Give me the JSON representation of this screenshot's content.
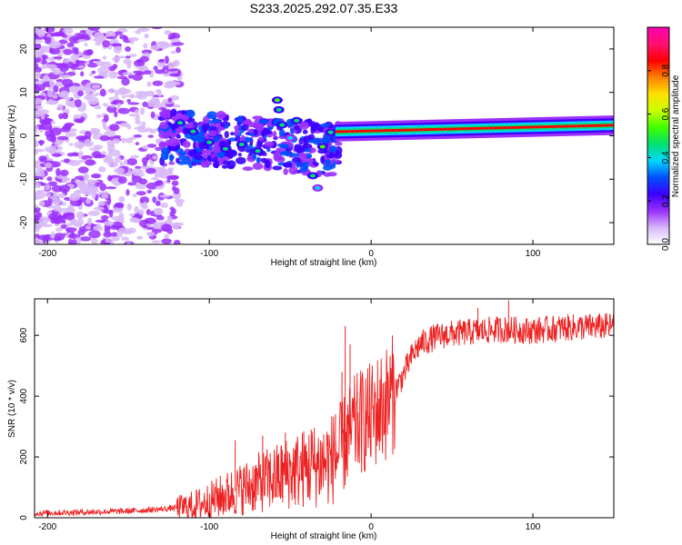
{
  "chart_data": [
    {
      "id": "spectrogram",
      "type": "heatmap",
      "title": "S233.2025.292.07.35.E33",
      "xlabel": "Height of straight line (km)",
      "ylabel": "Frequency (Hz)",
      "xlim": [
        -208,
        150
      ],
      "ylim": [
        -25,
        25
      ],
      "xticks": [
        -200,
        -100,
        0,
        100
      ],
      "yticks": [
        -20,
        -10,
        0,
        10,
        20
      ],
      "colorbar": {
        "label": "Normalized spectral amplitude",
        "range": [
          0,
          1
        ],
        "ticks": [
          0.0,
          0.2,
          0.4,
          0.6,
          0.8
        ],
        "colors": [
          "#ffffff",
          "#d8b8f8",
          "#9b30ff",
          "#3b00ff",
          "#0050ff",
          "#00d8ff",
          "#00e070",
          "#40ff00",
          "#c8ff00",
          "#ffe000",
          "#ff8000",
          "#ff0000",
          "#ff1070",
          "#ff00b0"
        ]
      },
      "carrier_band": {
        "x_start_km": -22,
        "x_end_km": 150,
        "freq_start_hz": 0.6,
        "freq_end_hz": 2.8,
        "peak_amplitude": 0.88
      },
      "features": [
        {
          "x_km": -58,
          "freq_hz": 8.2,
          "amplitude": 0.55
        },
        {
          "x_km": -57,
          "freq_hz": 6.0,
          "amplitude": 0.5
        },
        {
          "x_km": -55,
          "freq_hz": 2.5,
          "amplitude": 0.45
        },
        {
          "x_km": -50,
          "freq_hz": -0.5,
          "amplitude": 0.4
        },
        {
          "x_km": -46,
          "freq_hz": 3.5,
          "amplitude": 0.45
        },
        {
          "x_km": -36,
          "freq_hz": -9.2,
          "amplitude": 0.5
        },
        {
          "x_km": -33,
          "freq_hz": -12.0,
          "amplitude": 0.4
        },
        {
          "x_km": -30,
          "freq_hz": -2.5,
          "amplitude": 0.55
        },
        {
          "x_km": -25,
          "freq_hz": 0.8,
          "amplitude": 0.5
        },
        {
          "x_km": -118,
          "freq_hz": 3.0,
          "amplitude": 0.5
        },
        {
          "x_km": -110,
          "freq_hz": 1.0,
          "amplitude": 0.45
        },
        {
          "x_km": -100,
          "freq_hz": -1.5,
          "amplitude": 0.5
        },
        {
          "x_km": -90,
          "freq_hz": -3.0,
          "amplitude": 0.45
        },
        {
          "x_km": -80,
          "freq_hz": -2.0,
          "amplitude": 0.5
        },
        {
          "x_km": -70,
          "freq_hz": -3.5,
          "amplitude": 0.45
        }
      ]
    },
    {
      "id": "snr",
      "type": "line",
      "xlabel": "Height of straight line (km)",
      "ylabel": "SNR (10 * v/v)",
      "xlim": [
        -208,
        150
      ],
      "ylim": [
        0,
        720
      ],
      "xticks": [
        -200,
        -100,
        0,
        100
      ],
      "yticks": [
        0,
        200,
        400,
        600
      ],
      "color": "#ee2222",
      "trend": {
        "x": [
          -208,
          -180,
          -150,
          -130,
          -110,
          -100,
          -90,
          -80,
          -70,
          -60,
          -50,
          -40,
          -30,
          -25,
          -20,
          -15,
          -10,
          -5,
          0,
          5,
          10,
          15,
          20,
          25,
          30,
          40,
          50,
          60,
          80,
          100,
          120,
          150
        ],
        "y": [
          15,
          18,
          22,
          28,
          38,
          55,
          75,
          95,
          115,
          130,
          150,
          165,
          180,
          190,
          210,
          260,
          300,
          320,
          330,
          360,
          380,
          420,
          470,
          530,
          570,
          595,
          605,
          610,
          620,
          615,
          625,
          630
        ]
      },
      "spikes": [
        {
          "x": -16,
          "y": 630
        },
        {
          "x": -13,
          "y": 570
        },
        {
          "x": -18,
          "y": 480
        },
        {
          "x": -22,
          "y": 340
        },
        {
          "x": -37,
          "y": 290
        },
        {
          "x": -53,
          "y": 280
        },
        {
          "x": -67,
          "y": 270
        },
        {
          "x": -84,
          "y": 255
        },
        {
          "x": 85,
          "y": 715
        },
        {
          "x": 66,
          "y": 690
        }
      ]
    }
  ]
}
